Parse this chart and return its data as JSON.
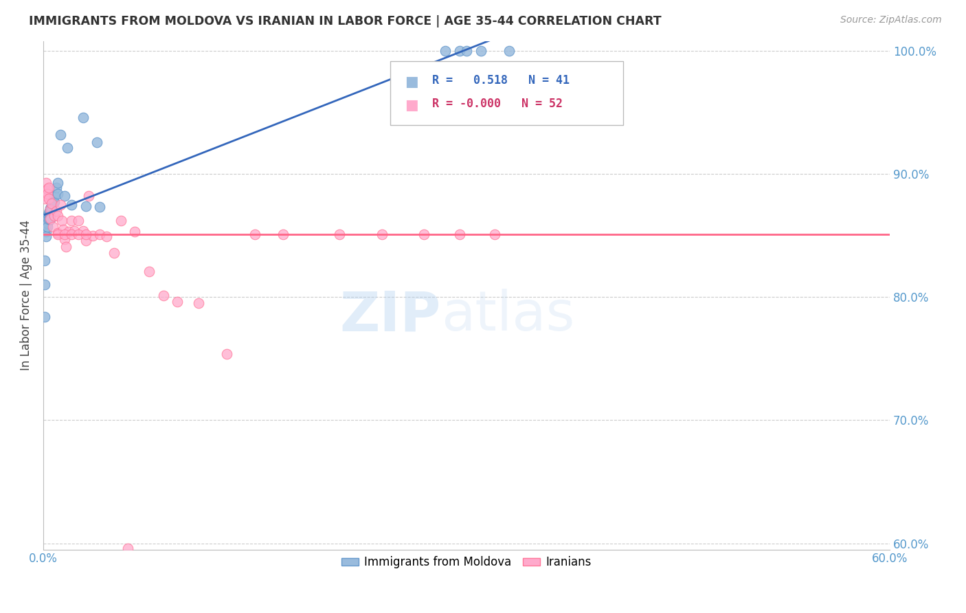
{
  "title": "IMMIGRANTS FROM MOLDOVA VS IRANIAN IN LABOR FORCE | AGE 35-44 CORRELATION CHART",
  "source": "Source: ZipAtlas.com",
  "ylabel": "In Labor Force | Age 35-44",
  "xlim": [
    0.0,
    0.6
  ],
  "ylim": [
    0.595,
    1.008
  ],
  "xticks": [
    0.0,
    0.1,
    0.2,
    0.3,
    0.4,
    0.5,
    0.6
  ],
  "yticks": [
    0.6,
    0.7,
    0.8,
    0.9,
    1.0
  ],
  "ytick_labels": [
    "60.0%",
    "70.0%",
    "80.0%",
    "90.0%",
    "100.0%"
  ],
  "xtick_labels": [
    "0.0%",
    "",
    "",
    "",
    "",
    "",
    "60.0%"
  ],
  "legend_blue_R": "0.518",
  "legend_blue_N": "41",
  "legend_pink_R": "-0.000",
  "legend_pink_N": "52",
  "blue_color": "#99BBDD",
  "pink_color": "#FFAACC",
  "blue_edge_color": "#6699CC",
  "pink_edge_color": "#FF7799",
  "trendline_blue_color": "#3366BB",
  "trendline_pink_color": "#FF6688",
  "blue_x": [
    0.001,
    0.001,
    0.001,
    0.001,
    0.002,
    0.002,
    0.002,
    0.002,
    0.002,
    0.003,
    0.003,
    0.003,
    0.003,
    0.004,
    0.004,
    0.004,
    0.005,
    0.005,
    0.005,
    0.005,
    0.006,
    0.006,
    0.007,
    0.008,
    0.008,
    0.009,
    0.01,
    0.01,
    0.012,
    0.015,
    0.017,
    0.02,
    0.028,
    0.03,
    0.038,
    0.04,
    0.285,
    0.295,
    0.3,
    0.31,
    0.33
  ],
  "blue_y": [
    0.855,
    0.83,
    0.81,
    0.784,
    0.863,
    0.86,
    0.857,
    0.853,
    0.849,
    0.866,
    0.863,
    0.86,
    0.857,
    0.869,
    0.866,
    0.863,
    0.872,
    0.869,
    0.866,
    0.863,
    0.874,
    0.871,
    0.877,
    0.883,
    0.877,
    0.889,
    0.893,
    0.884,
    0.932,
    0.882,
    0.921,
    0.875,
    0.946,
    0.874,
    0.926,
    0.873,
    1.0,
    1.0,
    1.0,
    1.0,
    1.0
  ],
  "pink_x": [
    0.001,
    0.001,
    0.002,
    0.002,
    0.003,
    0.003,
    0.004,
    0.004,
    0.005,
    0.005,
    0.006,
    0.007,
    0.008,
    0.009,
    0.01,
    0.01,
    0.012,
    0.013,
    0.014,
    0.015,
    0.016,
    0.018,
    0.02,
    0.022,
    0.025,
    0.028,
    0.03,
    0.032,
    0.035,
    0.04,
    0.045,
    0.05,
    0.055,
    0.065,
    0.075,
    0.085,
    0.095,
    0.11,
    0.13,
    0.15,
    0.17,
    0.21,
    0.24,
    0.27,
    0.295,
    0.32,
    0.01,
    0.015,
    0.02,
    0.025,
    0.03,
    0.06
  ],
  "pink_y": [
    0.883,
    0.88,
    0.893,
    0.886,
    0.888,
    0.884,
    0.889,
    0.88,
    0.871,
    0.864,
    0.876,
    0.857,
    0.866,
    0.87,
    0.866,
    0.852,
    0.875,
    0.862,
    0.855,
    0.847,
    0.841,
    0.853,
    0.862,
    0.854,
    0.862,
    0.854,
    0.846,
    0.882,
    0.85,
    0.851,
    0.849,
    0.836,
    0.862,
    0.853,
    0.821,
    0.801,
    0.796,
    0.795,
    0.754,
    0.851,
    0.851,
    0.851,
    0.851,
    0.851,
    0.851,
    0.851,
    0.851,
    0.851,
    0.851,
    0.851,
    0.851,
    0.596
  ],
  "trendline_blue_x_start": 0.001,
  "trendline_blue_x_end": 0.33,
  "trendline_pink_y": 0.851
}
